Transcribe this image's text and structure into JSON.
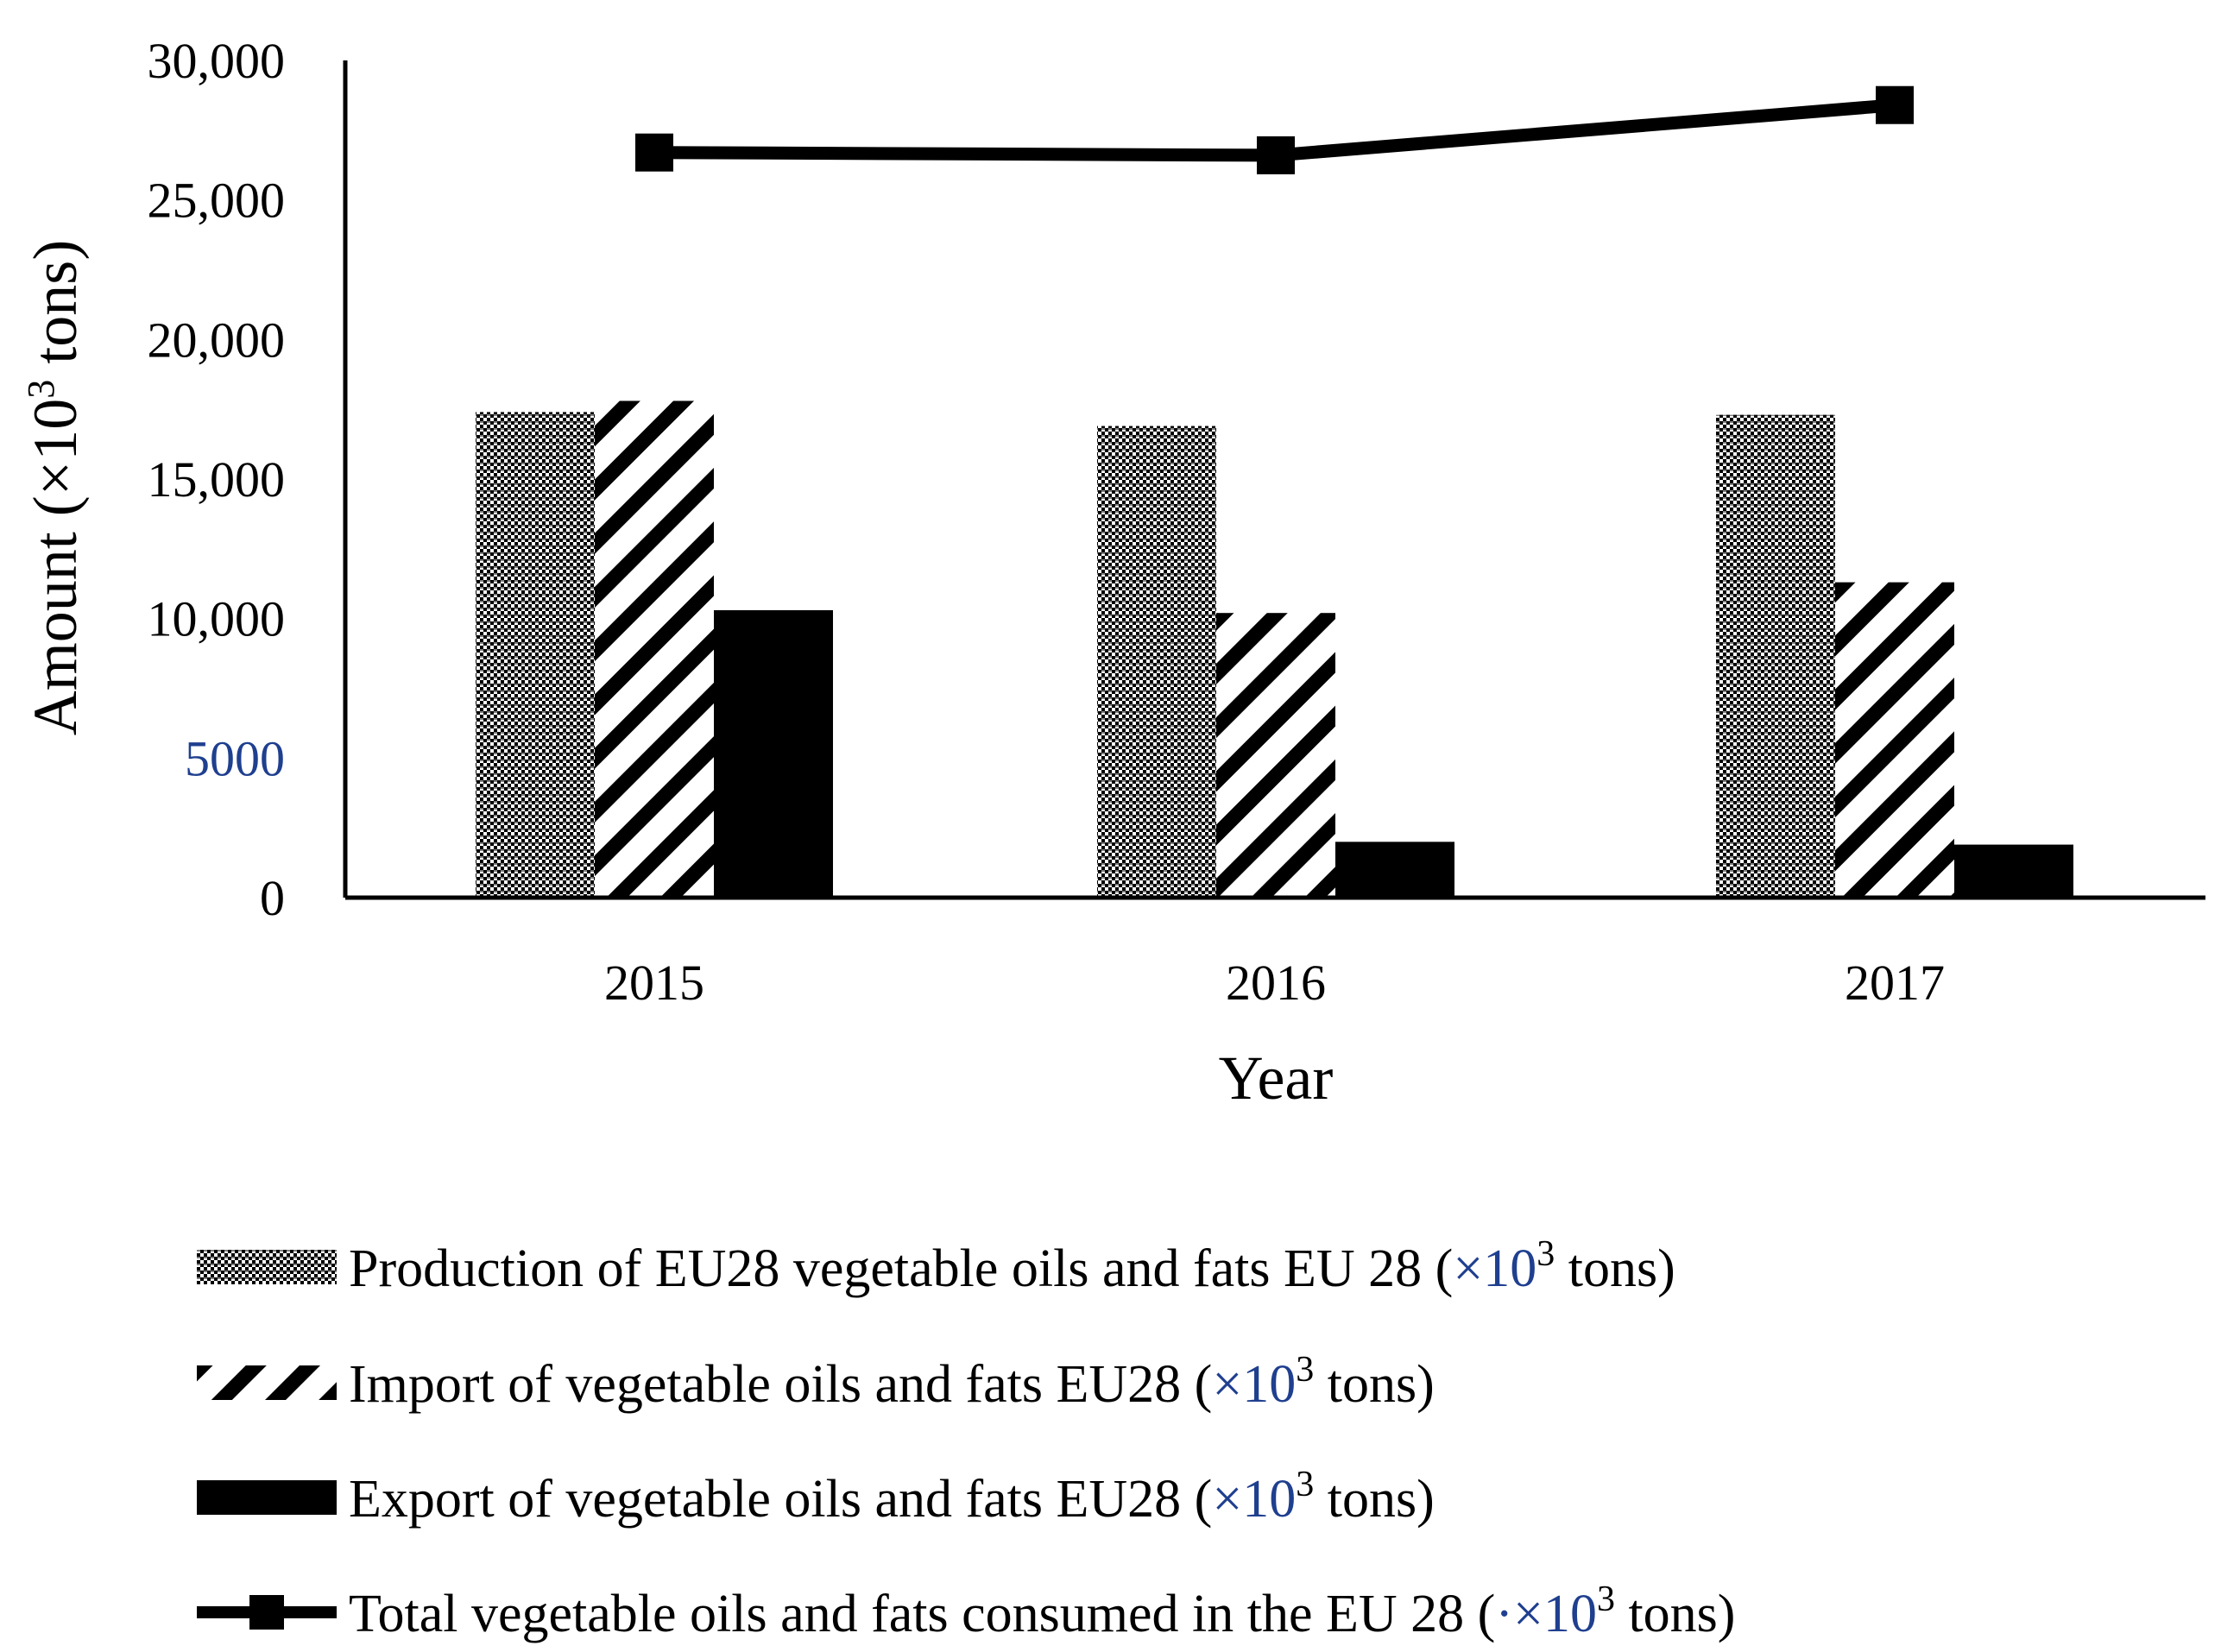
{
  "chart_data": {
    "type": "bar",
    "title": "",
    "xlabel": "Year",
    "ylabel": "Amount (×10",
    "ylabel_sup": "3",
    "ylabel_tail": " tons)",
    "categories": [
      "2015",
      "2016",
      "2017"
    ],
    "ylim": [
      0,
      30000
    ],
    "yticks": [
      {
        "value": 0,
        "label": "0"
      },
      {
        "value": 5000,
        "label": "5000"
      },
      {
        "value": 10000,
        "label": "10,000"
      },
      {
        "value": 15000,
        "label": "15,000"
      },
      {
        "value": 20000,
        "label": "20,000"
      },
      {
        "value": 25000,
        "label": "25,000"
      },
      {
        "value": 30000,
        "label": "30,000"
      }
    ],
    "series": [
      {
        "name": "Production of EU28 vegetable oils and fats EU 28",
        "kind": "bar",
        "pattern": "dots",
        "values": [
          17400,
          16900,
          17300
        ]
      },
      {
        "name": "Import of vegetable oils and fats EU28",
        "kind": "bar",
        "pattern": "diagonal",
        "values": [
          17800,
          10200,
          11300
        ]
      },
      {
        "name": "Export of vegetable oils and fats EU28",
        "kind": "bar",
        "pattern": "solid",
        "values": [
          10300,
          2000,
          1900
        ]
      },
      {
        "name": "Total vegetable oils and fats consumed in the EU 28",
        "kind": "line",
        "marker": "square",
        "values": [
          26700,
          26600,
          28400
        ]
      }
    ],
    "legend": {
      "position": "bottom",
      "entries": [
        {
          "pre": "Production of EU28 vegetable oils and fats EU 28 (",
          "mult": "×",
          "base": "10",
          "sup": "3",
          "post": " tons)"
        },
        {
          "pre": "Import of vegetable oils and fats EU28 (",
          "mult": "×",
          "base": "10",
          "sup": "3",
          "post": " tons)"
        },
        {
          "pre": "Export of vegetable oils and fats EU28 (",
          "mult": "×",
          "base": "10",
          "sup": "3",
          "post": " tons)"
        },
        {
          "pre": "Total vegetable oils and fats consumed in the EU 28 (",
          "mult": "·×",
          "base": "10",
          "sup": "3",
          "post": " tons)"
        }
      ]
    }
  }
}
